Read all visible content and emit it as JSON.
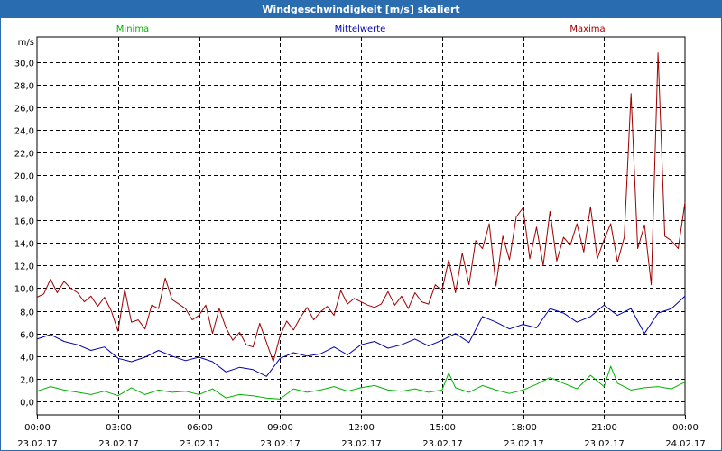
{
  "window": {
    "title": "Windgeschwindigkeit [m/s] skaliert"
  },
  "colors": {
    "minima": "#00b400",
    "mittelwerte": "#0000b0",
    "maxima": "#a00000",
    "grid": "#000000",
    "title_bar": "#2a6cb0"
  },
  "chart_data": {
    "type": "line",
    "title": "Windgeschwindigkeit [m/s] skaliert",
    "ylabel": "m/s",
    "xlabel": "",
    "ylim": [
      -1.2,
      32.2
    ],
    "xlim": [
      0,
      24
    ],
    "grid": true,
    "legend_placement": "top",
    "y_ticks": [
      {
        "value": 0,
        "label": "0,0"
      },
      {
        "value": 2,
        "label": "2,0"
      },
      {
        "value": 4,
        "label": "4,0"
      },
      {
        "value": 6,
        "label": "6,0"
      },
      {
        "value": 8,
        "label": "8,0"
      },
      {
        "value": 10,
        "label": "10,0"
      },
      {
        "value": 12,
        "label": "12,0"
      },
      {
        "value": 14,
        "label": "14,0"
      },
      {
        "value": 16,
        "label": "16,0"
      },
      {
        "value": 18,
        "label": "18,0"
      },
      {
        "value": 20,
        "label": "20,0"
      },
      {
        "value": 22,
        "label": "22,0"
      },
      {
        "value": 24,
        "label": "24,0"
      },
      {
        "value": 26,
        "label": "26,0"
      },
      {
        "value": 28,
        "label": "28,0"
      },
      {
        "value": 30,
        "label": "30,0"
      }
    ],
    "x_ticks": [
      {
        "value": 0,
        "time": "00:00",
        "date": "23.02.17"
      },
      {
        "value": 3,
        "time": "03:00",
        "date": "23.02.17"
      },
      {
        "value": 6,
        "time": "06:00",
        "date": "23.02.17"
      },
      {
        "value": 9,
        "time": "09:00",
        "date": "23.02.17"
      },
      {
        "value": 12,
        "time": "12:00",
        "date": "23.02.17"
      },
      {
        "value": 15,
        "time": "15:00",
        "date": "23.02.17"
      },
      {
        "value": 18,
        "time": "18:00",
        "date": "23.02.17"
      },
      {
        "value": 21,
        "time": "21:00",
        "date": "23.02.17"
      },
      {
        "value": 24,
        "time": "00:00",
        "date": "24.02.17"
      }
    ],
    "series": [
      {
        "name": "Minima",
        "key": "minima",
        "color": "#00b400",
        "x": [
          0,
          0.5,
          1,
          1.5,
          2,
          2.5,
          3,
          3.5,
          4,
          4.5,
          5,
          5.5,
          6,
          6.5,
          7,
          7.5,
          8,
          8.5,
          9,
          9.5,
          10,
          10.5,
          11,
          11.5,
          12,
          12.5,
          13,
          13.5,
          14,
          14.5,
          15,
          15.25,
          15.5,
          16,
          16.5,
          17,
          17.5,
          18,
          18.5,
          19,
          19.5,
          20,
          20.5,
          21,
          21.25,
          21.5,
          22,
          22.5,
          23,
          23.5,
          24
        ],
        "values": [
          0.9,
          1.3,
          1.0,
          0.8,
          0.6,
          0.9,
          0.5,
          1.2,
          0.6,
          1.0,
          0.8,
          0.9,
          0.6,
          1.1,
          0.3,
          0.6,
          0.5,
          0.3,
          0.2,
          1.1,
          0.8,
          1.0,
          1.3,
          0.9,
          1.2,
          1.4,
          1.0,
          0.9,
          1.1,
          0.8,
          1.0,
          2.5,
          1.2,
          0.8,
          1.4,
          1.0,
          0.7,
          1.0,
          1.5,
          2.1,
          1.6,
          1.1,
          2.3,
          1.3,
          3.1,
          1.6,
          1.0,
          1.2,
          1.3,
          1.1,
          1.7
        ]
      },
      {
        "name": "Mittelwerte",
        "key": "mittelwerte",
        "color": "#0000b0",
        "x": [
          0,
          0.5,
          1,
          1.5,
          2,
          2.5,
          3,
          3.5,
          4,
          4.5,
          5,
          5.5,
          6,
          6.5,
          7,
          7.5,
          8,
          8.5,
          9,
          9.5,
          10,
          10.5,
          11,
          11.5,
          12,
          12.5,
          13,
          13.5,
          14,
          14.5,
          15,
          15.5,
          16,
          16.5,
          17,
          17.5,
          18,
          18.5,
          19,
          19.5,
          20,
          20.5,
          21,
          21.5,
          22,
          22.5,
          23,
          23.5,
          24
        ],
        "values": [
          5.5,
          5.9,
          5.3,
          5.0,
          4.5,
          4.8,
          3.8,
          3.5,
          3.9,
          4.5,
          4.0,
          3.6,
          3.9,
          3.5,
          2.6,
          3.0,
          2.8,
          2.2,
          3.8,
          4.3,
          4.0,
          4.2,
          4.8,
          4.1,
          5.0,
          5.3,
          4.7,
          5.0,
          5.5,
          4.9,
          5.4,
          6.0,
          5.2,
          7.5,
          7.0,
          6.4,
          6.8,
          6.5,
          8.2,
          7.8,
          7.0,
          7.5,
          8.5,
          7.6,
          8.2,
          6.0,
          7.8,
          8.2,
          9.3
        ]
      },
      {
        "name": "Maxima",
        "key": "maxima",
        "color": "#a00000",
        "x": [
          0,
          0.25,
          0.5,
          0.75,
          1,
          1.25,
          1.5,
          1.75,
          2,
          2.25,
          2.5,
          2.75,
          3,
          3.25,
          3.5,
          3.75,
          4,
          4.25,
          4.5,
          4.75,
          5,
          5.25,
          5.5,
          5.75,
          6,
          6.25,
          6.5,
          6.75,
          7,
          7.25,
          7.5,
          7.75,
          8,
          8.25,
          8.5,
          8.75,
          9,
          9.25,
          9.5,
          9.75,
          10,
          10.25,
          10.5,
          10.75,
          11,
          11.25,
          11.5,
          11.75,
          12,
          12.25,
          12.5,
          12.75,
          13,
          13.25,
          13.5,
          13.75,
          14,
          14.25,
          14.5,
          14.75,
          15,
          15.25,
          15.5,
          15.75,
          16,
          16.25,
          16.5,
          16.75,
          17,
          17.25,
          17.5,
          17.75,
          18,
          18.25,
          18.5,
          18.75,
          19,
          19.25,
          19.5,
          19.75,
          20,
          20.25,
          20.5,
          20.75,
          21,
          21.25,
          21.5,
          21.75,
          22,
          22.25,
          22.5,
          22.75,
          23,
          23.25,
          23.5,
          23.75,
          24
        ],
        "values": [
          9.2,
          9.5,
          10.8,
          9.6,
          10.6,
          10.0,
          9.6,
          8.8,
          9.3,
          8.4,
          9.2,
          8.0,
          6.2,
          9.9,
          7.0,
          7.2,
          6.4,
          8.5,
          8.2,
          10.9,
          9.0,
          8.6,
          8.2,
          7.2,
          7.6,
          8.5,
          6.0,
          8.2,
          6.5,
          5.4,
          6.1,
          5.0,
          4.8,
          6.9,
          5.2,
          3.5,
          5.8,
          7.1,
          6.3,
          7.4,
          8.3,
          7.2,
          7.9,
          8.4,
          7.6,
          9.8,
          8.6,
          9.1,
          8.8,
          8.5,
          8.3,
          8.6,
          9.7,
          8.5,
          9.3,
          8.2,
          9.6,
          8.8,
          8.6,
          10.3,
          9.8,
          12.5,
          9.6,
          13.1,
          10.3,
          14.2,
          13.5,
          15.7,
          10.2,
          14.6,
          12.5,
          16.3,
          17.1,
          12.6,
          15.4,
          12.0,
          16.8,
          12.4,
          14.5,
          13.8,
          15.7,
          13.2,
          17.2,
          12.6,
          14.3,
          15.7,
          12.3,
          14.5,
          27.2,
          13.5,
          15.6,
          10.3,
          30.8,
          14.6,
          14.2,
          13.5,
          17.6
        ]
      }
    ]
  }
}
